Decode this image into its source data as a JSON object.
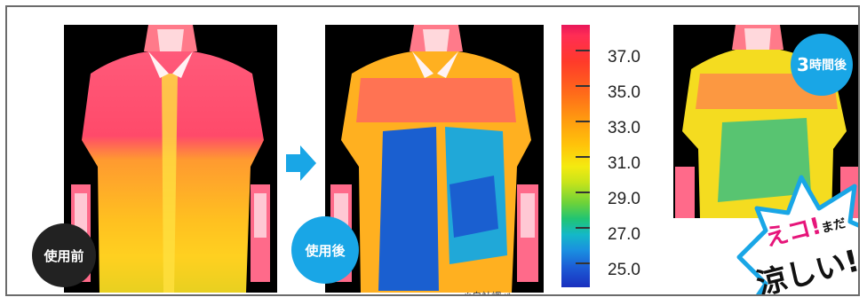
{
  "badges": {
    "before": "使用前",
    "after": "使用後",
    "three_hours": "3",
    "three_hours_suffix": "時間後"
  },
  "scale": {
    "labels": [
      "37.0",
      "35.0",
      "33.0",
      "31.0",
      "29.0",
      "27.0",
      "25.0"
    ]
  },
  "note": "※自社調べ",
  "callout": {
    "line1": "えコ!",
    "line1_small": "まだ",
    "line2": "涼しい!"
  },
  "colors": {
    "accent_blue": "#19a6e6",
    "badge_dark": "#222222",
    "callout_pink": "#e6157a"
  }
}
